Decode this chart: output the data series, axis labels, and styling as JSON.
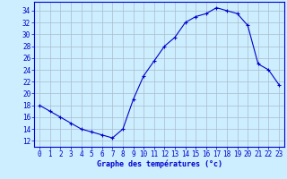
{
  "hours": [
    0,
    1,
    2,
    3,
    4,
    5,
    6,
    7,
    8,
    9,
    10,
    11,
    12,
    13,
    14,
    15,
    16,
    17,
    18,
    19,
    20,
    21,
    22,
    23
  ],
  "temps": [
    18,
    17,
    16,
    15,
    14,
    13.5,
    13,
    12.5,
    14,
    19,
    23,
    25.5,
    28,
    29.5,
    32,
    33,
    33.5,
    34.5,
    34,
    33.5,
    31.5,
    25,
    24,
    21.5
  ],
  "line_color": "#0000cc",
  "marker": "+",
  "marker_size": 3,
  "bg_color": "#cceeff",
  "grid_color": "#aabbcc",
  "xlabel": "Graphe des températures (°c)",
  "xlabel_color": "#0000cc",
  "tick_color": "#0000cc",
  "xlim": [
    -0.5,
    23.5
  ],
  "ylim": [
    11,
    35.5
  ],
  "yticks": [
    12,
    14,
    16,
    18,
    20,
    22,
    24,
    26,
    28,
    30,
    32,
    34
  ],
  "xtick_labels": [
    "0",
    "1",
    "2",
    "3",
    "4",
    "5",
    "6",
    "7",
    "8",
    "9",
    "10",
    "11",
    "12",
    "13",
    "14",
    "15",
    "16",
    "17",
    "18",
    "19",
    "20",
    "21",
    "22",
    "23"
  ]
}
